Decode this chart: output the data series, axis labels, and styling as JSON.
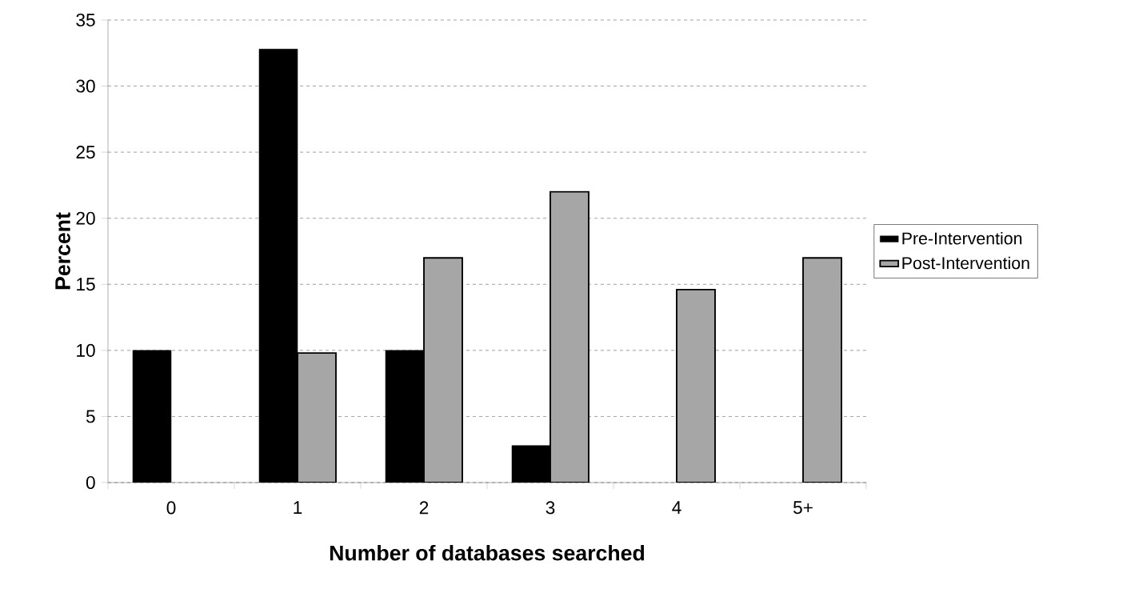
{
  "chart_data": {
    "type": "bar",
    "xlabel": "Number of databases searched",
    "ylabel": "Percent",
    "categories": [
      "0",
      "1",
      "2",
      "3",
      "4",
      "5+"
    ],
    "series": [
      {
        "name": "Pre-Intervention",
        "color": "#000000",
        "values": [
          10,
          32.8,
          10,
          2.8,
          null,
          null
        ]
      },
      {
        "name": "Post-Intervention",
        "color": "#a6a6a6",
        "values": [
          null,
          9.8,
          17,
          22,
          14.6,
          17
        ]
      }
    ],
    "ylim": [
      0,
      35
    ],
    "yticks": [
      0,
      5,
      10,
      15,
      20,
      25,
      30,
      35
    ],
    "grid": "y",
    "legend": "right"
  }
}
